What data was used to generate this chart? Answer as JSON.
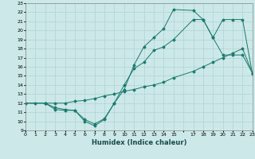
{
  "xlabel": "Humidex (Indice chaleur)",
  "xlim": [
    0,
    23
  ],
  "ylim": [
    9,
    23
  ],
  "xticks": [
    0,
    1,
    2,
    3,
    4,
    5,
    6,
    7,
    8,
    9,
    10,
    11,
    12,
    13,
    14,
    15,
    16,
    17,
    18,
    19,
    20,
    21,
    22,
    23
  ],
  "xticklabels": [
    "0",
    "1",
    "2",
    "3",
    "4",
    "5",
    "6",
    "7",
    "8",
    "9",
    "10",
    "11",
    "12",
    "13",
    "14",
    "15",
    "",
    "17",
    "18",
    "19",
    "20",
    "21",
    "22",
    "23"
  ],
  "yticks": [
    9,
    10,
    11,
    12,
    13,
    14,
    15,
    16,
    17,
    18,
    19,
    20,
    21,
    22,
    23
  ],
  "bg_color": "#cce8e8",
  "grid_color": "#aacccc",
  "line_color": "#1a7a6e",
  "line1_x": [
    0,
    1,
    2,
    3,
    4,
    5,
    6,
    7,
    8,
    9,
    10,
    11,
    12,
    13,
    14,
    15,
    17,
    18,
    19,
    20,
    21,
    22,
    23
  ],
  "line1_y": [
    12,
    12,
    12,
    11.3,
    11.2,
    11.2,
    10.0,
    9.5,
    10.2,
    12.0,
    14.0,
    15.8,
    16.5,
    17.8,
    18.2,
    19.0,
    21.2,
    21.2,
    19.2,
    21.2,
    21.2,
    21.2,
    15.2
  ],
  "line2_x": [
    0,
    2,
    3,
    4,
    5,
    6,
    7,
    8,
    9,
    10,
    11,
    12,
    13,
    14,
    15,
    17,
    18,
    19,
    20,
    21,
    22,
    23
  ],
  "line2_y": [
    12,
    12,
    11.5,
    11.3,
    11.2,
    10.2,
    9.7,
    10.3,
    12.0,
    13.5,
    16.2,
    18.2,
    19.2,
    20.2,
    22.3,
    22.2,
    21.2,
    19.2,
    17.3,
    17.3,
    17.3,
    15.3
  ],
  "line3_x": [
    0,
    2,
    3,
    4,
    5,
    6,
    7,
    8,
    9,
    10,
    11,
    12,
    13,
    14,
    15,
    17,
    18,
    19,
    20,
    21,
    22,
    23
  ],
  "line3_y": [
    12,
    12,
    12,
    12,
    12.2,
    12.3,
    12.5,
    12.8,
    13.0,
    13.3,
    13.5,
    13.8,
    14.0,
    14.3,
    14.8,
    15.5,
    16.0,
    16.5,
    17.0,
    17.5,
    18.0,
    15.3
  ]
}
